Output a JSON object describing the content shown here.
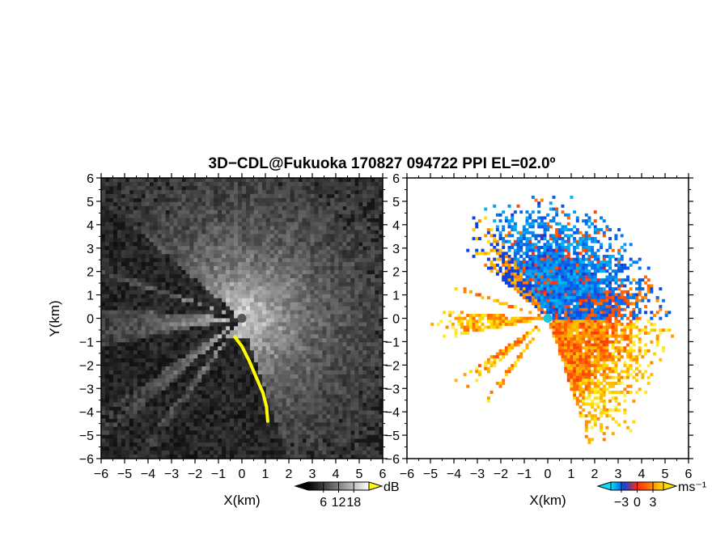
{
  "chart_data": {
    "type": "heatmap",
    "title": "3D−CDL@Fukuoka 170827 094722 PPI EL=02.0º",
    "panels": [
      {
        "id": "snr",
        "xlabel": "X(km)",
        "ylabel": "Y(km)",
        "xlim": [
          -6,
          6
        ],
        "ylim": [
          -6,
          6
        ],
        "x_ticks": [
          "−6",
          "−5",
          "−4",
          "−3",
          "−2",
          "−1",
          "0",
          "1",
          "2",
          "3",
          "4",
          "5",
          "6"
        ],
        "y_ticks": [
          "6",
          "5",
          "4",
          "3",
          "2",
          "1",
          "0",
          "−1",
          "−2",
          "−3",
          "−4",
          "−5",
          "−6"
        ],
        "colorbar": {
          "unit": "dB",
          "tick_labels": [
            "6",
            "12",
            "18"
          ],
          "ticks": [
            6,
            12,
            18
          ],
          "range": [
            0,
            24
          ],
          "colormap": "grayscale",
          "colors": [
            "#000000",
            "#ffffff"
          ],
          "over_color": "#ffff00"
        }
      },
      {
        "id": "velocity",
        "xlabel": "X(km)",
        "xlim": [
          -6,
          6
        ],
        "ylim": [
          -6,
          6
        ],
        "x_ticks": [
          "−6",
          "−5",
          "−4",
          "−3",
          "−2",
          "−1",
          "0",
          "1",
          "2",
          "3",
          "4",
          "5",
          "6"
        ],
        "y_ticks": [
          "6",
          "5",
          "4",
          "3",
          "2",
          "1",
          "0",
          "−1",
          "−2",
          "−3",
          "−4",
          "−5",
          "−6"
        ],
        "colorbar": {
          "unit": "ms⁻¹",
          "tick_labels": [
            "−3",
            "0",
            "3"
          ],
          "ticks": [
            -3,
            0,
            3
          ],
          "range": [
            -5,
            5
          ],
          "colormap": "cyan-blue-red-orange-yellow",
          "colors": [
            "#00e0ff",
            "#0a46e0",
            "#ff2a10",
            "#ff7a00",
            "#ffe000"
          ]
        }
      }
    ]
  },
  "colors": {
    "background": "#ffffff",
    "snr_bg": "#161616",
    "snr_high": "#ffff00",
    "vel_negative": "#1b4fe6",
    "vel_positive": "#ff3a14",
    "vel_light_pos": "#ffc000",
    "vel_center": "#19c6d9"
  }
}
